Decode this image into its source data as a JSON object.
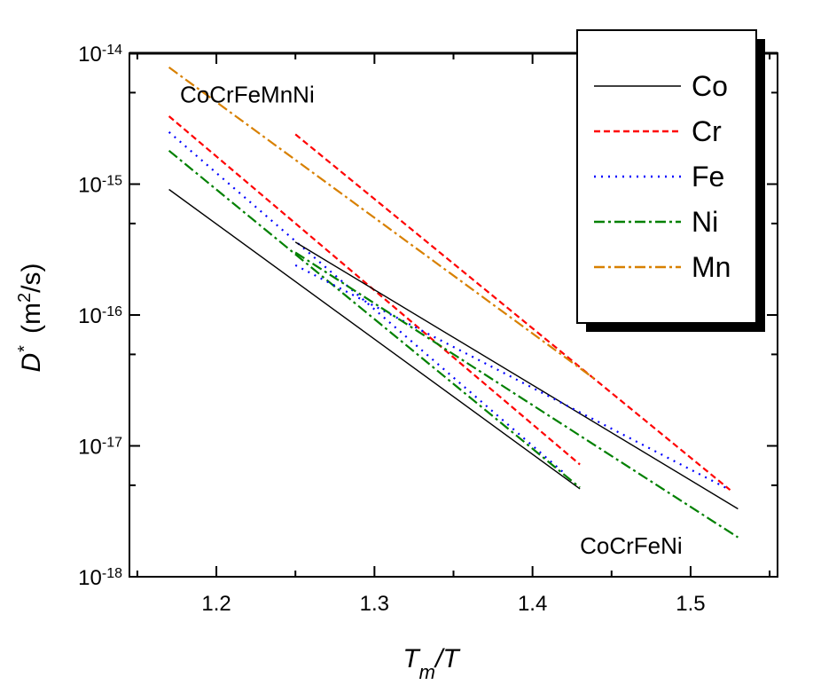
{
  "chart_data": {
    "type": "line",
    "title": "",
    "xlabel": {
      "main": "T",
      "sub": "m",
      "rest": "/T"
    },
    "ylabel": {
      "main": "D",
      "sup": "*",
      "units_prefix": "(m",
      "units_sup": "2",
      "units_suffix": "/s)"
    },
    "xscale": "linear",
    "yscale": "log",
    "xlim": [
      1.145,
      1.555
    ],
    "ylim": [
      1e-18,
      1e-14
    ],
    "x_ticks": [
      {
        "value": 1.2,
        "label": "1.2"
      },
      {
        "value": 1.3,
        "label": "1.3"
      },
      {
        "value": 1.4,
        "label": "1.4"
      },
      {
        "value": 1.5,
        "label": "1.5"
      }
    ],
    "y_ticks": [
      {
        "value": 1e-18,
        "base": "10",
        "exp": "-18"
      },
      {
        "value": 1e-17,
        "base": "10",
        "exp": "-17"
      },
      {
        "value": 1e-16,
        "base": "10",
        "exp": "-16"
      },
      {
        "value": 1e-15,
        "base": "10",
        "exp": "-15"
      },
      {
        "value": 1e-14,
        "base": "10",
        "exp": "-14"
      }
    ],
    "legend": {
      "position": "top-right",
      "entries": [
        {
          "label": "Co",
          "color": "#000000",
          "dash": "solid"
        },
        {
          "label": "Cr",
          "color": "#ff0000",
          "dash": "dash"
        },
        {
          "label": "Fe",
          "color": "#0000ff",
          "dash": "dot"
        },
        {
          "label": "Ni",
          "color": "#008000",
          "dash": "dashdot"
        },
        {
          "label": "Mn",
          "color": "#d88000",
          "dash": "dashdot"
        }
      ]
    },
    "annotations": [
      {
        "text": "CoCrFeMnNi",
        "x": 1.177,
        "y": 4.2e-15
      },
      {
        "text": "CoCrFeNi",
        "x": 1.43,
        "y": 1.5e-18
      }
    ],
    "series": [
      {
        "name": "Co",
        "group": "CoCrFeNi",
        "color": "#000000",
        "dash": "solid",
        "x": [
          1.17,
          1.43
        ],
        "y": [
          9.1e-16,
          4.7e-18
        ]
      },
      {
        "name": "Cr",
        "group": "CoCrFeNi",
        "color": "#ff0000",
        "dash": "dash",
        "x": [
          1.17,
          1.43
        ],
        "y": [
          3.3e-15,
          7.2e-18
        ]
      },
      {
        "name": "Fe",
        "group": "CoCrFeNi",
        "color": "#0000ff",
        "dash": "dot",
        "x": [
          1.17,
          1.42
        ],
        "y": [
          2.5e-15,
          6.2e-18
        ]
      },
      {
        "name": "Ni",
        "group": "CoCrFeNi",
        "color": "#008000",
        "dash": "dashdot",
        "x": [
          1.17,
          1.43
        ],
        "y": [
          1.8e-15,
          4.8e-18
        ]
      },
      {
        "name": "Co",
        "group": "CoCrFeMnNi",
        "color": "#000000",
        "dash": "solid",
        "x": [
          1.25,
          1.53
        ],
        "y": [
          3.6e-16,
          3.3e-18
        ]
      },
      {
        "name": "Cr",
        "group": "CoCrFeMnNi",
        "color": "#ff0000",
        "dash": "dash",
        "x": [
          1.25,
          1.525
        ],
        "y": [
          2.4e-15,
          4.6e-18
        ]
      },
      {
        "name": "Fe",
        "group": "CoCrFeMnNi",
        "color": "#0000ff",
        "dash": "dot",
        "x": [
          1.25,
          1.525
        ],
        "y": [
          2.4e-16,
          4.6e-18
        ]
      },
      {
        "name": "Ni",
        "group": "CoCrFeMnNi",
        "color": "#008000",
        "dash": "dashdot",
        "x": [
          1.25,
          1.53
        ],
        "y": [
          3e-16,
          2e-18
        ]
      },
      {
        "name": "Mn",
        "group": "CoCrFeMnNi",
        "color": "#d88000",
        "dash": "dashdot",
        "x": [
          1.17,
          1.44
        ],
        "y": [
          7.8e-15,
          3.2e-17
        ]
      }
    ]
  }
}
